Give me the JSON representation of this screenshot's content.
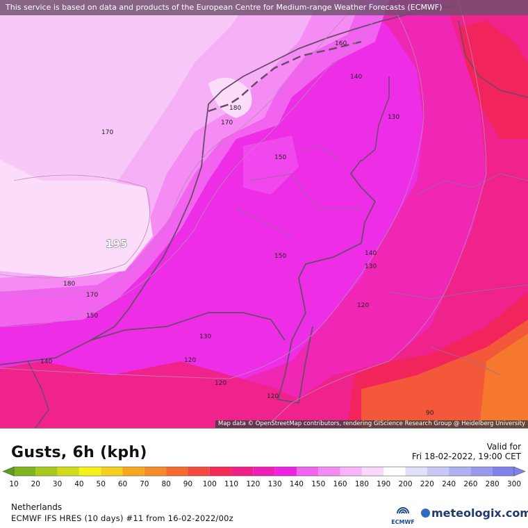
{
  "map": {
    "banner": "This service is based on data and products of the European Centre for Medium-range Weather Forecasts (ECMWF)",
    "attribution": "Map data © OpenStreetMap contributors, rendering GIScience Research Group @ Heidelberg University",
    "contour_labels": {
      "l160": "160",
      "l140a": "140",
      "l130a": "130",
      "l180a": "180",
      "l170a": "170",
      "l170b": "170",
      "l150a": "150",
      "l195": "195",
      "l150b": "150",
      "l140b": "140",
      "l130b": "130",
      "l180b": "180",
      "l170c": "170",
      "l150c": "150",
      "l120a": "120",
      "l130c": "130",
      "l140c": "140",
      "l120b": "120",
      "l120c": "120",
      "l120d": "120",
      "l90": "90"
    }
  },
  "legend": {
    "title": "Gusts, 6h (kph)",
    "valid_label": "Valid for",
    "valid_date": "Fri 18-02-2022, 19:00 CET",
    "scale": [
      {
        "value": "10",
        "color": "#5a9e1a"
      },
      {
        "value": "20",
        "color": "#7db51e"
      },
      {
        "value": "30",
        "color": "#a8c820"
      },
      {
        "value": "40",
        "color": "#cfdc1c"
      },
      {
        "value": "50",
        "color": "#f5f21a"
      },
      {
        "value": "60",
        "color": "#f5cf1f"
      },
      {
        "value": "70",
        "color": "#f5a81f"
      },
      {
        "value": "80",
        "color": "#f58c2a"
      },
      {
        "value": "90",
        "color": "#f56a30"
      },
      {
        "value": "100",
        "color": "#f54a40"
      },
      {
        "value": "110",
        "color": "#f22a55"
      },
      {
        "value": "120",
        "color": "#f01e88"
      },
      {
        "value": "130",
        "color": "#f01eb8"
      },
      {
        "value": "140",
        "color": "#ee22e0"
      },
      {
        "value": "150",
        "color": "#f064f0"
      },
      {
        "value": "160",
        "color": "#f48af4"
      },
      {
        "value": "180",
        "color": "#f8b4f8"
      },
      {
        "value": "190",
        "color": "#fad8fa"
      },
      {
        "value": "200",
        "color": "#ffffff"
      },
      {
        "value": "220",
        "color": "#e0e0fa"
      },
      {
        "value": "240",
        "color": "#c8c8f6"
      },
      {
        "value": "260",
        "color": "#b0b0f2"
      },
      {
        "value": "280",
        "color": "#9898ee"
      },
      {
        "value": "300",
        "color": "#8080ea"
      }
    ]
  },
  "footer": {
    "region": "Netherlands",
    "model": "ECMWF IFS HRES (10 days) #11 from 16-02-2022/00z",
    "ecmwf_logo": "ECMWF",
    "meteologix_logo": "meteologix.com"
  }
}
